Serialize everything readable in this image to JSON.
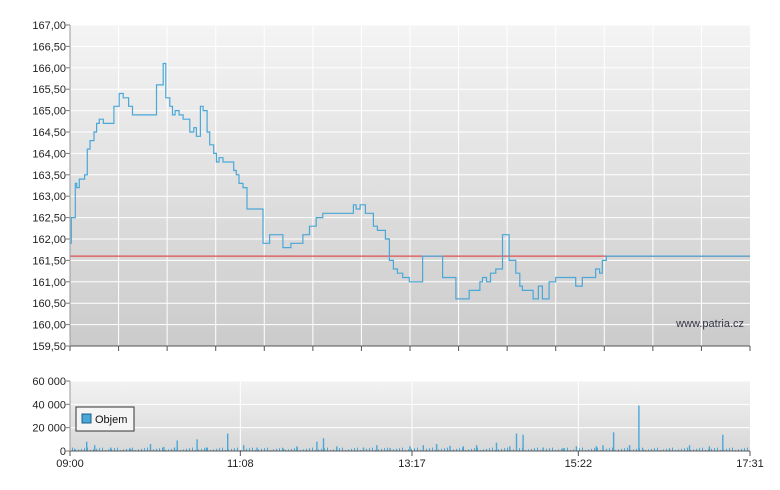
{
  "watermark": "www.patria.cz",
  "chart_data": [
    {
      "type": "line",
      "title": "",
      "xlabel": "",
      "ylabel": "",
      "ylim": [
        159.5,
        167.0
      ],
      "grid": true,
      "ytick_labels": [
        "167,00",
        "166,50",
        "166,00",
        "165,50",
        "165,00",
        "164,50",
        "164,00",
        "163,50",
        "163,00",
        "162,50",
        "162,00",
        "161,50",
        "161,00",
        "160,50",
        "160,00",
        "159,50"
      ],
      "reference_line": {
        "value": 161.6,
        "color": "#e05050"
      },
      "line_color": "#4aa8d8",
      "series": [
        {
          "x": [
            "09:00",
            "09:01",
            "09:04",
            "09:05",
            "09:07",
            "09:09",
            "09:11",
            "09:13",
            "09:15",
            "09:18",
            "09:20",
            "09:22",
            "09:25",
            "09:30",
            "09:33",
            "09:37",
            "09:40",
            "09:44",
            "09:47",
            "09:50",
            "09:52",
            "09:55",
            "10:00",
            "10:05",
            "10:10",
            "10:12",
            "10:15",
            "10:17",
            "10:19",
            "10:22",
            "10:25",
            "10:30",
            "10:33",
            "10:35",
            "10:38",
            "10:40",
            "10:43",
            "10:45",
            "10:48",
            "10:50",
            "10:52",
            "10:55",
            "10:57",
            "11:00",
            "11:03",
            "11:05",
            "11:07",
            "11:10",
            "11:13",
            "11:16",
            "11:20",
            "11:25",
            "11:30",
            "11:35",
            "11:40",
            "11:43",
            "11:46",
            "11:50",
            "11:55",
            "12:00",
            "12:05",
            "12:10",
            "12:15",
            "12:20",
            "12:25",
            "12:30",
            "12:33",
            "12:35",
            "12:38",
            "12:42",
            "12:46",
            "12:48",
            "12:51",
            "12:54",
            "12:57",
            "13:00",
            "13:03",
            "13:06",
            "13:10",
            "13:15",
            "13:20",
            "13:25",
            "13:30",
            "13:40",
            "13:50",
            "14:00",
            "14:05",
            "14:08",
            "14:10",
            "14:13",
            "14:16",
            "14:20",
            "14:25",
            "14:30",
            "14:35",
            "14:38",
            "14:40",
            "14:43",
            "14:45",
            "14:48",
            "14:52",
            "14:55",
            "15:00",
            "15:05",
            "15:10",
            "15:15",
            "15:20",
            "15:25",
            "15:30",
            "15:35",
            "15:38",
            "15:40",
            "15:43",
            "15:47",
            "15:50",
            "15:55",
            "16:00",
            "16:05",
            "16:08",
            "16:11",
            "16:14",
            "16:17",
            "16:20",
            "16:23",
            "16:25",
            "16:28",
            "16:30",
            "16:32",
            "16:35",
            "16:38",
            "16:42",
            "16:47",
            "16:50",
            "16:53",
            "16:57",
            "17:00",
            "17:05",
            "17:10",
            "17:13",
            "17:16",
            "17:20",
            "17:25",
            "17:31"
          ],
          "values": [
            161.9,
            162.5,
            163.3,
            163.2,
            163.4,
            163.4,
            163.5,
            164.1,
            164.3,
            164.5,
            164.7,
            164.8,
            164.7,
            164.7,
            165.1,
            165.4,
            165.3,
            165.1,
            164.9,
            164.9,
            164.9,
            164.9,
            164.9,
            165.6,
            166.1,
            165.3,
            165.1,
            164.9,
            165.0,
            164.9,
            164.8,
            164.5,
            164.6,
            164.4,
            165.1,
            165.0,
            164.5,
            164.2,
            164.0,
            163.8,
            163.9,
            163.8,
            163.8,
            163.8,
            163.6,
            163.5,
            163.3,
            163.2,
            162.7,
            162.7,
            162.7,
            161.9,
            162.1,
            162.1,
            161.8,
            161.8,
            161.9,
            161.9,
            162.1,
            162.3,
            162.5,
            162.6,
            162.6,
            162.6,
            162.6,
            162.6,
            162.8,
            162.7,
            162.8,
            162.6,
            162.6,
            162.3,
            162.2,
            162.2,
            162.0,
            161.5,
            161.3,
            161.2,
            161.1,
            161.0,
            161.0,
            161.6,
            161.6,
            161.1,
            160.6,
            160.8,
            160.8,
            161.0,
            161.1,
            161.0,
            161.2,
            161.3,
            162.1,
            161.5,
            161.2,
            160.9,
            160.8,
            160.8,
            160.8,
            160.6,
            160.9,
            160.6,
            161.0,
            161.1,
            161.1,
            161.1,
            160.9,
            161.1,
            161.1,
            161.3,
            161.2,
            161.5,
            161.6,
            161.6,
            161.6,
            161.6,
            161.6,
            161.6,
            161.6,
            161.6,
            161.6,
            161.6,
            161.6,
            161.6,
            161.6,
            161.6,
            161.6,
            161.6,
            161.6,
            161.6,
            161.6,
            161.6,
            161.6,
            161.6,
            161.6,
            161.6,
            161.6,
            161.6,
            161.6,
            161.6,
            161.6,
            161.6,
            161.6
          ]
        }
      ]
    },
    {
      "type": "bar",
      "title": "",
      "ylim": [
        0,
        60000
      ],
      "ytick_labels": [
        "60 000",
        "40 000",
        "20 000",
        "0"
      ],
      "xtick_labels": [
        "09:00",
        "11:08",
        "13:17",
        "15:22",
        "17:31"
      ],
      "legend": {
        "label": "Objem",
        "placement": "top-left"
      },
      "bar_color": "#4aa8d8",
      "series": [
        {
          "name": "Objem",
          "x": [
            "09:03",
            "09:12",
            "09:18",
            "09:30",
            "09:45",
            "10:00",
            "10:10",
            "10:18",
            "10:20",
            "10:35",
            "10:42",
            "10:58",
            "11:10",
            "11:20",
            "11:40",
            "11:50",
            "12:05",
            "12:10",
            "12:20",
            "12:40",
            "12:50",
            "13:00",
            "13:15",
            "13:25",
            "13:35",
            "13:45",
            "13:55",
            "14:05",
            "14:20",
            "14:30",
            "14:35",
            "14:40",
            "14:55",
            "15:10",
            "15:20",
            "15:35",
            "15:40",
            "15:48",
            "16:00",
            "16:07",
            "16:10",
            "16:30",
            "16:45",
            "17:00",
            "17:10"
          ],
          "values": [
            2000,
            8000,
            5000,
            3000,
            2000,
            6000,
            3500,
            3000,
            9000,
            10000,
            3000,
            15000,
            5000,
            3000,
            2000,
            4000,
            8000,
            11000,
            4000,
            3000,
            5000,
            2500,
            4000,
            5000,
            6000,
            4500,
            4000,
            5000,
            7000,
            4000,
            15000,
            14000,
            3000,
            2500,
            4000,
            4000,
            5000,
            16000,
            5000,
            39000,
            2000,
            2000,
            5000,
            4000,
            14000
          ]
        }
      ]
    }
  ]
}
